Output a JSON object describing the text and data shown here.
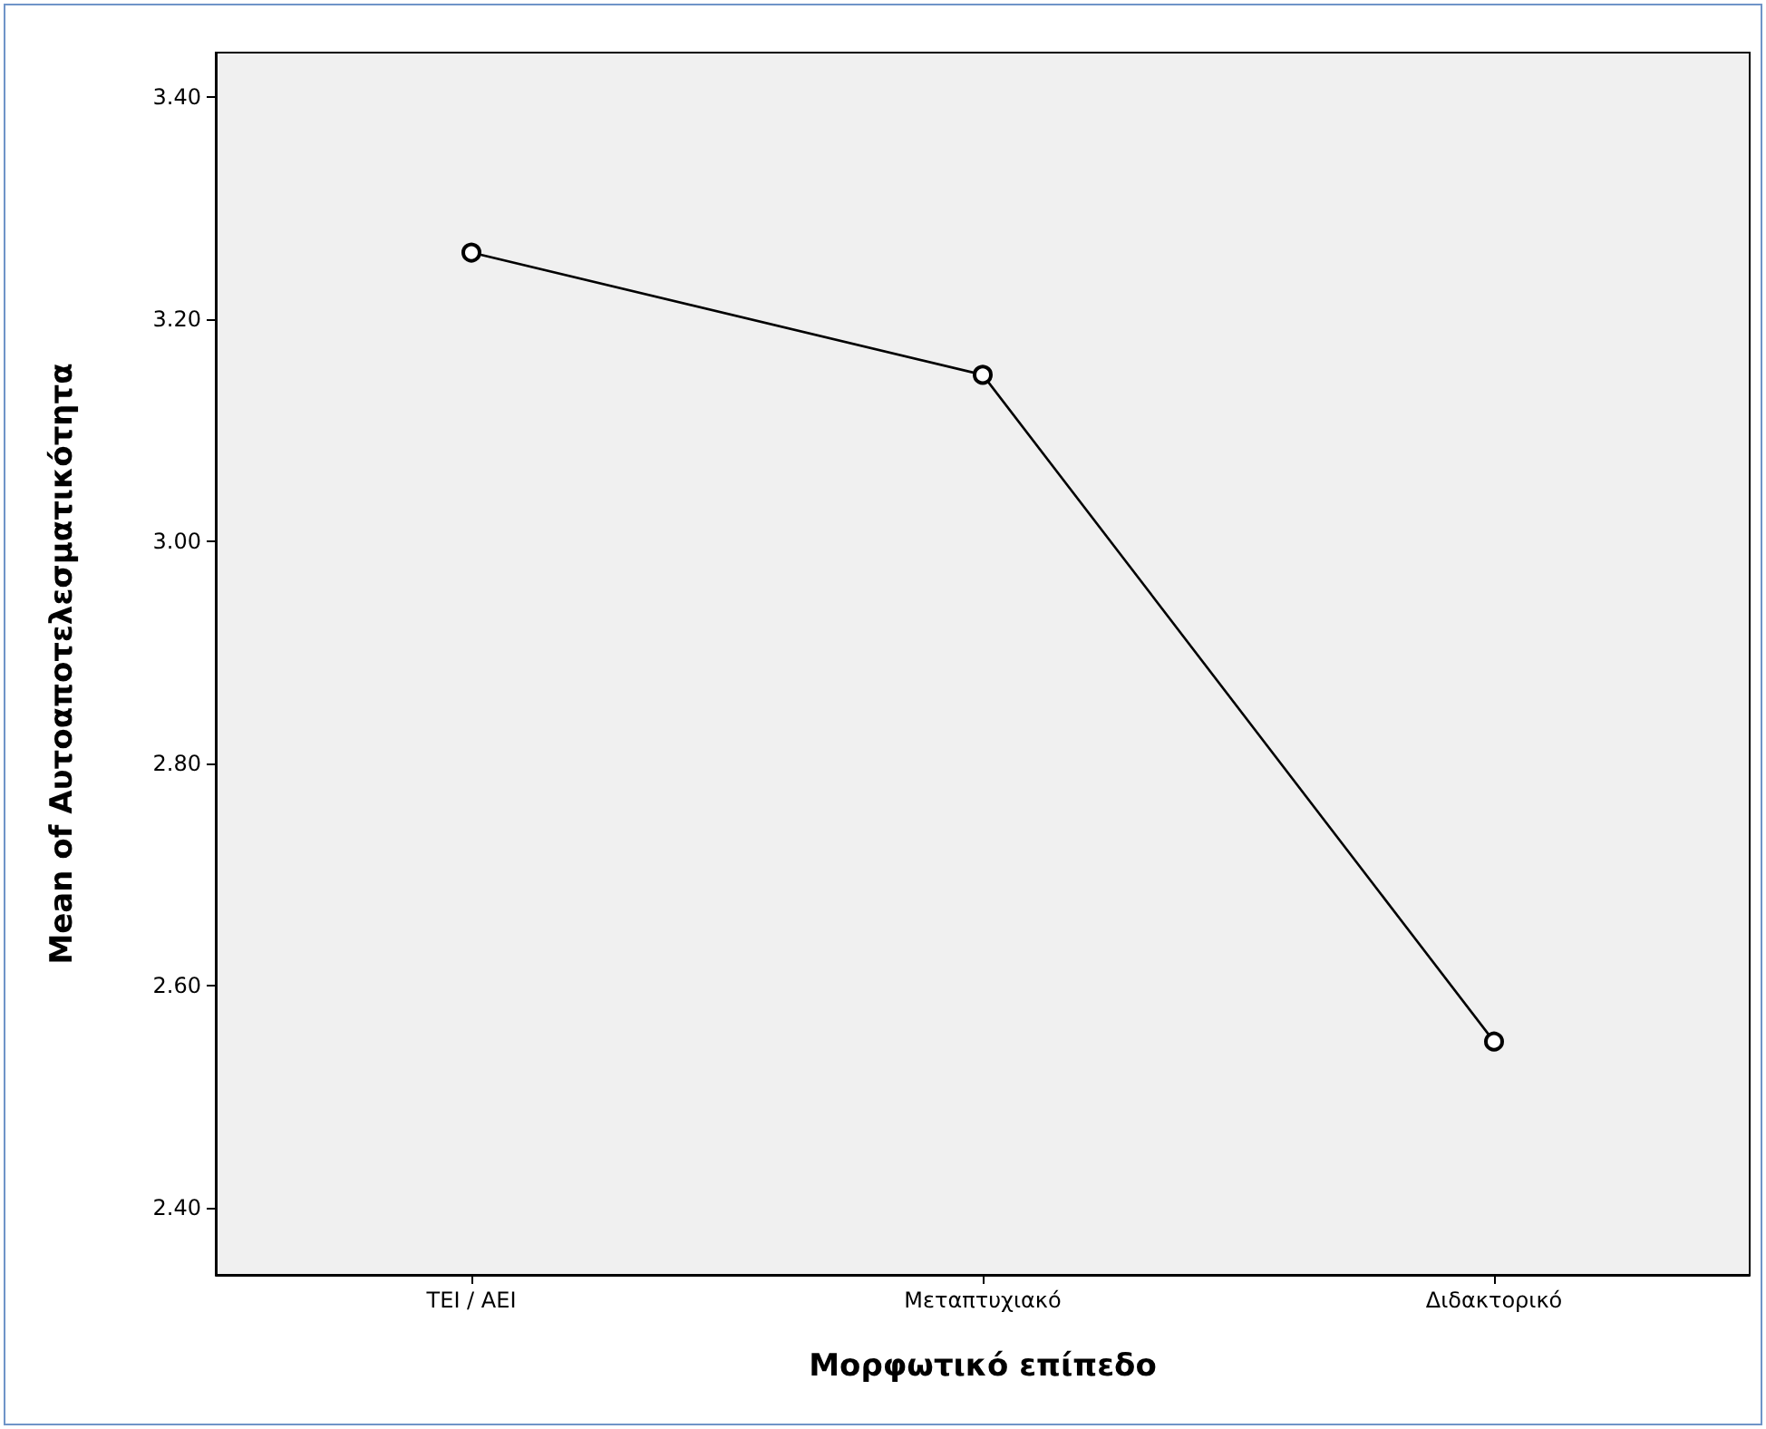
{
  "chart_data": {
    "type": "line",
    "xlabel": "Μορφωτικό επίπεδο",
    "ylabel": "Mean of Αυτοαποτελεσματικότητα",
    "categories": [
      "TEI / AEI",
      "Μεταπτυχιακό",
      "Διδακτορικό"
    ],
    "series": [
      {
        "color": "#000000",
        "values": [
          3.26,
          3.15,
          2.55
        ]
      }
    ],
    "ylim": [
      2.34,
      3.44
    ],
    "yticks": [
      {
        "value": 2.4,
        "label": "2.40"
      },
      {
        "value": 2.6,
        "label": "2.60"
      },
      {
        "value": 2.8,
        "label": "2.80"
      },
      {
        "value": 3.0,
        "label": "3.00"
      },
      {
        "value": 3.2,
        "label": "3.20"
      },
      {
        "value": 3.4,
        "label": "3.40"
      }
    ],
    "grid": false,
    "marker": "circle",
    "line_style": "solid"
  }
}
